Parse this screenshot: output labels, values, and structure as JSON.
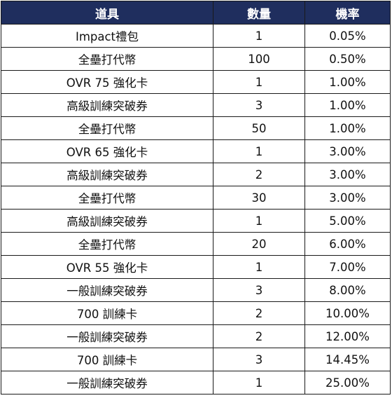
{
  "colors": {
    "header_bg": "#1f2e5e",
    "header_text": "#ffffff",
    "border": "#1a1a1a",
    "cell_text": "#111111"
  },
  "table": {
    "headers": [
      "道具",
      "數量",
      "機率"
    ],
    "rows": [
      {
        "item": "Impact禮包",
        "qty": "1",
        "rate": "0.05%"
      },
      {
        "item": "全壘打代幣",
        "qty": "100",
        "rate": "0.50%"
      },
      {
        "item": "OVR 75 強化卡",
        "qty": "1",
        "rate": "1.00%"
      },
      {
        "item": "高級訓練突破券",
        "qty": "3",
        "rate": "1.00%"
      },
      {
        "item": "全壘打代幣",
        "qty": "50",
        "rate": "1.00%"
      },
      {
        "item": "OVR 65 強化卡",
        "qty": "1",
        "rate": "3.00%"
      },
      {
        "item": "高級訓練突破券",
        "qty": "2",
        "rate": "3.00%"
      },
      {
        "item": "全壘打代幣",
        "qty": "30",
        "rate": "3.00%"
      },
      {
        "item": "高級訓練突破券",
        "qty": "1",
        "rate": "5.00%"
      },
      {
        "item": "全壘打代幣",
        "qty": "20",
        "rate": "6.00%"
      },
      {
        "item": "OVR 55 強化卡",
        "qty": "1",
        "rate": "7.00%"
      },
      {
        "item": "一般訓練突破券",
        "qty": "3",
        "rate": "8.00%"
      },
      {
        "item": "700 訓練卡",
        "qty": "2",
        "rate": "10.00%"
      },
      {
        "item": "一般訓練突破券",
        "qty": "2",
        "rate": "12.00%"
      },
      {
        "item": "700 訓練卡",
        "qty": "3",
        "rate": "14.45%"
      },
      {
        "item": "一般訓練突破券",
        "qty": "1",
        "rate": "25.00%"
      }
    ]
  }
}
